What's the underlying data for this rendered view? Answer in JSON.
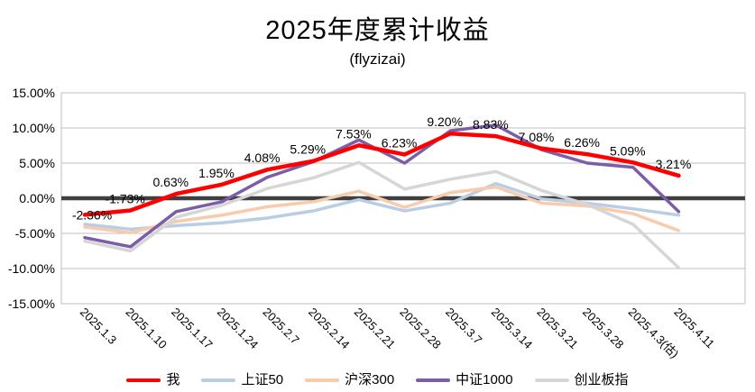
{
  "header": {
    "title": "2025年度累计收益",
    "subtitle": "(flyzizai)"
  },
  "colors": {
    "grid": "#BFBFBF",
    "border": "#BFBFBF",
    "zero_line": "#3F3F3F",
    "text": "#000000",
    "background": "#FFFFFF"
  },
  "chart_data": {
    "type": "line",
    "title": "2025年度累计收益",
    "subtitle": "(flyzizai)",
    "xlabel": "",
    "ylabel": "",
    "ylim": [
      -15,
      15
    ],
    "grid": true,
    "legend_position": "bottom",
    "y_ticks": [
      "15.00%",
      "10.00%",
      "5.00%",
      "0.00%",
      "-5.00%",
      "-10.00%",
      "-15.00%"
    ],
    "y_tick_values": [
      15,
      10,
      5,
      0,
      -5,
      -10,
      -15
    ],
    "categories": [
      "2025.1.3",
      "2025.1.10",
      "2025.1.17",
      "2025.1.24",
      "2025.2.7",
      "2025.2.14",
      "2025.2.21",
      "2025.2.28",
      "2025.3.7",
      "2025.3.14",
      "2025.3.21",
      "2025.3.28",
      "2025.4.3(估)",
      "2025.4.11"
    ],
    "series": [
      {
        "name": "我",
        "color": "#FF0000",
        "width": 4.5,
        "values": [
          -2.36,
          -1.73,
          0.63,
          1.95,
          4.08,
          5.29,
          7.53,
          6.23,
          9.2,
          8.83,
          7.08,
          6.26,
          5.09,
          3.21
        ],
        "data_labels": [
          "-2.36%",
          "-1.73%",
          "0.63%",
          "1.95%",
          "4.08%",
          "5.29%",
          "7.53%",
          "6.23%",
          "9.20%",
          "8.83%",
          "7.08%",
          "6.26%",
          "5.09%",
          "3.21%"
        ]
      },
      {
        "name": "上证50",
        "color": "#B9CDE5",
        "width": 3.5,
        "values": [
          -3.7,
          -4.4,
          -3.9,
          -3.5,
          -2.8,
          -1.8,
          -0.2,
          -1.8,
          -0.7,
          2.1,
          -0.1,
          -0.7,
          -1.5,
          -2.4
        ]
      },
      {
        "name": "沪深300",
        "color": "#F8CBAD",
        "width": 3.5,
        "values": [
          -4.1,
          -4.9,
          -3.3,
          -2.4,
          -1.2,
          -0.5,
          1.0,
          -1.3,
          0.8,
          1.6,
          -0.7,
          -1.1,
          -2.2,
          -4.6
        ]
      },
      {
        "name": "中证1000",
        "color": "#7B5EA7",
        "width": 3.5,
        "values": [
          -5.6,
          -6.9,
          -1.9,
          -0.5,
          3.0,
          5.2,
          8.3,
          5.0,
          9.6,
          10.4,
          6.9,
          5.0,
          4.4,
          -1.9
        ]
      },
      {
        "name": "创业板指",
        "color": "#D6D6D6",
        "width": 3.5,
        "values": [
          -6.1,
          -7.5,
          -2.7,
          -1.0,
          1.4,
          2.9,
          5.1,
          1.3,
          2.7,
          3.8,
          1.1,
          -0.9,
          -3.7,
          -9.9
        ]
      }
    ]
  }
}
